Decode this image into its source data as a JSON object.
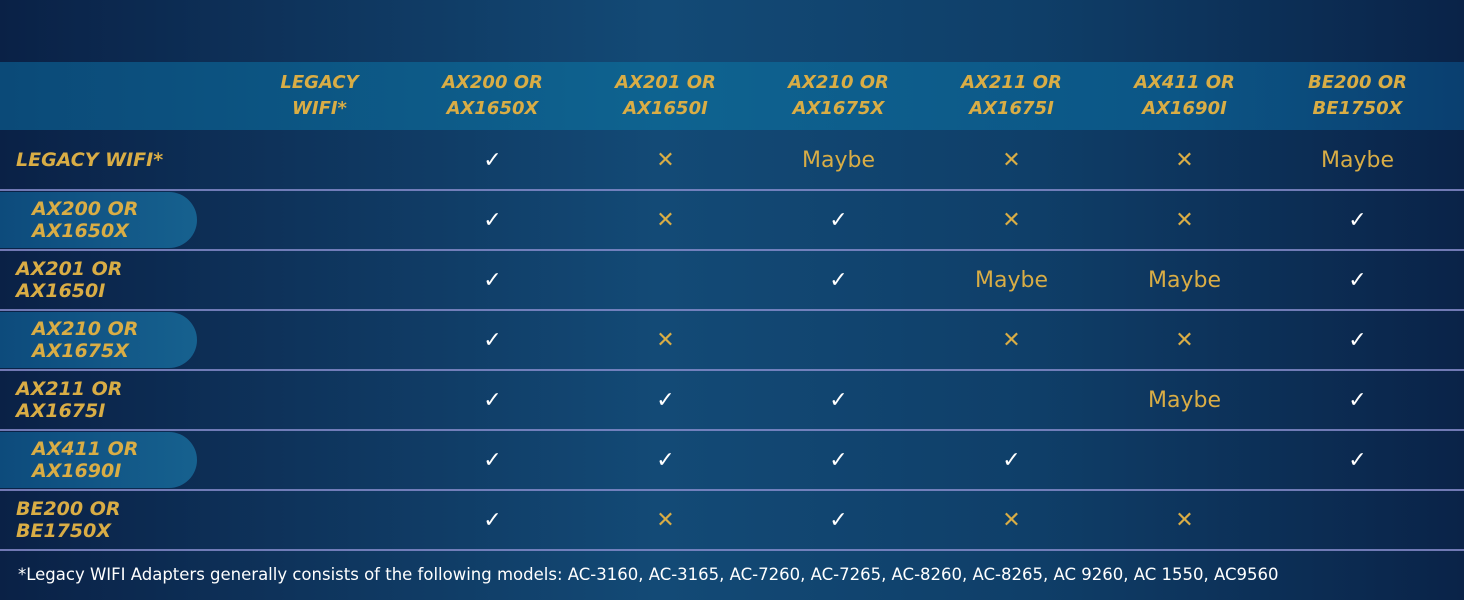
{
  "table": {
    "header": [
      "LEGACY WIFI*",
      "AX200 OR AX1650X",
      "AX201 OR AX1650I",
      "AX210 OR AX1675X",
      "AX211 OR AX1675I",
      "AX411 OR AX1690I",
      "BE200 OR BE1750X"
    ],
    "rows": [
      {
        "label": "LEGACY WIFI*",
        "cells": [
          null,
          {
            "text": "✓",
            "color": "#ffffff"
          },
          {
            "text": "✕"
          },
          {
            "text": "Maybe"
          },
          {
            "text": "✕"
          },
          {
            "text": "✕"
          },
          {
            "text": "Maybe"
          }
        ]
      },
      {
        "label": "AX200 OR AX1650X",
        "cells": [
          null,
          {
            "text": "✓",
            "color": "#ffffff"
          },
          {
            "text": "✕"
          },
          {
            "text": "✓",
            "color": "#ffffff"
          },
          {
            "text": "✕"
          },
          {
            "text": "✕"
          },
          {
            "text": "✓",
            "color": "#ffffff"
          }
        ]
      },
      {
        "label": "AX201 OR AX1650I",
        "cells": [
          null,
          {
            "text": "✓",
            "color": "#ffffff"
          },
          null,
          {
            "text": "✓",
            "color": "#ffffff"
          },
          {
            "text": "Maybe"
          },
          {
            "text": "Maybe"
          },
          {
            "text": "✓",
            "color": "#ffffff"
          }
        ]
      },
      {
        "label": "AX210 OR AX1675X",
        "cells": [
          null,
          {
            "text": "✓",
            "color": "#ffffff"
          },
          {
            "text": "✕"
          },
          null,
          {
            "text": "✕"
          },
          {
            "text": "✕"
          },
          {
            "text": "✓",
            "color": "#ffffff"
          }
        ]
      },
      {
        "label": "AX211 OR AX1675I",
        "cells": [
          null,
          {
            "text": "✓",
            "color": "#ffffff"
          },
          {
            "text": "✓",
            "color": "#ffffff"
          },
          {
            "text": "✓",
            "color": "#ffffff"
          },
          null,
          {
            "text": "Maybe"
          },
          {
            "text": "✓",
            "color": "#ffffff"
          }
        ]
      },
      {
        "label": "AX411 OR AX1690I",
        "cells": [
          null,
          {
            "text": "✓",
            "color": "#ffffff"
          },
          {
            "text": "✓",
            "color": "#ffffff"
          },
          {
            "text": "✓",
            "color": "#ffffff"
          },
          {
            "text": "✓",
            "color": "#ffffff"
          },
          null,
          {
            "text": "✓",
            "color": "#ffffff"
          }
        ]
      },
      {
        "label": "BE200 OR BE1750X",
        "cells": [
          null,
          {
            "text": "✓",
            "color": "#ffffff"
          },
          {
            "text": "✕"
          },
          {
            "text": "✓",
            "color": "#ffffff"
          },
          {
            "text": "✕"
          },
          {
            "text": "✕"
          },
          null
        ]
      }
    ]
  },
  "footnote": "*Legacy WIFI Adapters generally consists of the following models: AC-3160, AC-3165, AC-7260, AC-7265, AC-8260, AC-8265, AC 9260, AC 1550, AC9560"
}
